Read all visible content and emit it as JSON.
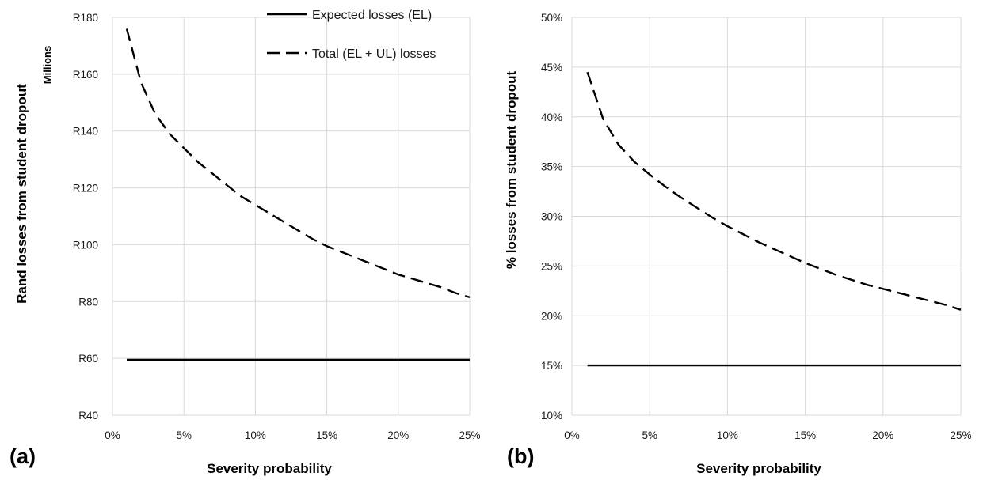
{
  "chart_data": [
    {
      "panel_label": "(a)",
      "type": "line",
      "xlabel": "Severity probability",
      "ylabel": "Rand losses from student dropout",
      "y_unit_label": "Millions",
      "x_ticks": [
        "0%",
        "5%",
        "10%",
        "15%",
        "20%",
        "25%"
      ],
      "y_ticks": [
        "R40",
        "R60",
        "R80",
        "R100",
        "R120",
        "R140",
        "R160",
        "R180"
      ],
      "xlim": [
        0,
        25
      ],
      "ylim": [
        40,
        180
      ],
      "grid": true,
      "legend": [
        {
          "label": "Expected losses (EL)",
          "style": "solid"
        },
        {
          "label": "Total (EL + UL) losses",
          "style": "dashed"
        }
      ],
      "legend_position": "top-right",
      "series": [
        {
          "name": "Expected losses (EL)",
          "style": "solid",
          "x": [
            1,
            25
          ],
          "values": [
            59.5,
            59.5
          ]
        },
        {
          "name": "Total (EL + UL) losses",
          "style": "dashed",
          "x": [
            1,
            2,
            3,
            4,
            5,
            6,
            7,
            8,
            9,
            10,
            11,
            12,
            13,
            14,
            15,
            16,
            17,
            18,
            19,
            20,
            21,
            22,
            23,
            24,
            25
          ],
          "values": [
            176,
            157,
            146,
            139,
            134,
            129,
            125,
            121,
            117,
            114,
            111,
            108,
            105,
            102,
            99.5,
            97.5,
            95.5,
            93.5,
            91.5,
            89.5,
            88,
            86.5,
            85,
            83,
            81.5
          ]
        }
      ]
    },
    {
      "panel_label": "(b)",
      "type": "line",
      "xlabel": "Severity probability",
      "ylabel": "% losses from student dropout",
      "x_ticks": [
        "0%",
        "5%",
        "10%",
        "15%",
        "20%",
        "25%"
      ],
      "y_ticks": [
        "10%",
        "15%",
        "20%",
        "25%",
        "30%",
        "35%",
        "40%",
        "45%",
        "50%"
      ],
      "xlim": [
        0,
        25
      ],
      "ylim": [
        10,
        50
      ],
      "grid": true,
      "series": [
        {
          "name": "Expected losses (EL)",
          "style": "solid",
          "x": [
            1,
            25
          ],
          "values": [
            15,
            15
          ]
        },
        {
          "name": "Total (EL + UL) losses",
          "style": "dashed",
          "x": [
            1,
            2,
            3,
            4,
            5,
            6,
            7,
            8,
            9,
            10,
            11,
            12,
            13,
            14,
            15,
            16,
            17,
            18,
            19,
            20,
            21,
            22,
            23,
            24,
            25
          ],
          "values": [
            44.5,
            39.8,
            37.2,
            35.5,
            34.2,
            33,
            31.9,
            30.9,
            29.9,
            29,
            28.2,
            27.4,
            26.7,
            26,
            25.3,
            24.7,
            24.1,
            23.6,
            23.1,
            22.7,
            22.3,
            21.9,
            21.5,
            21.1,
            20.6
          ]
        }
      ]
    }
  ]
}
